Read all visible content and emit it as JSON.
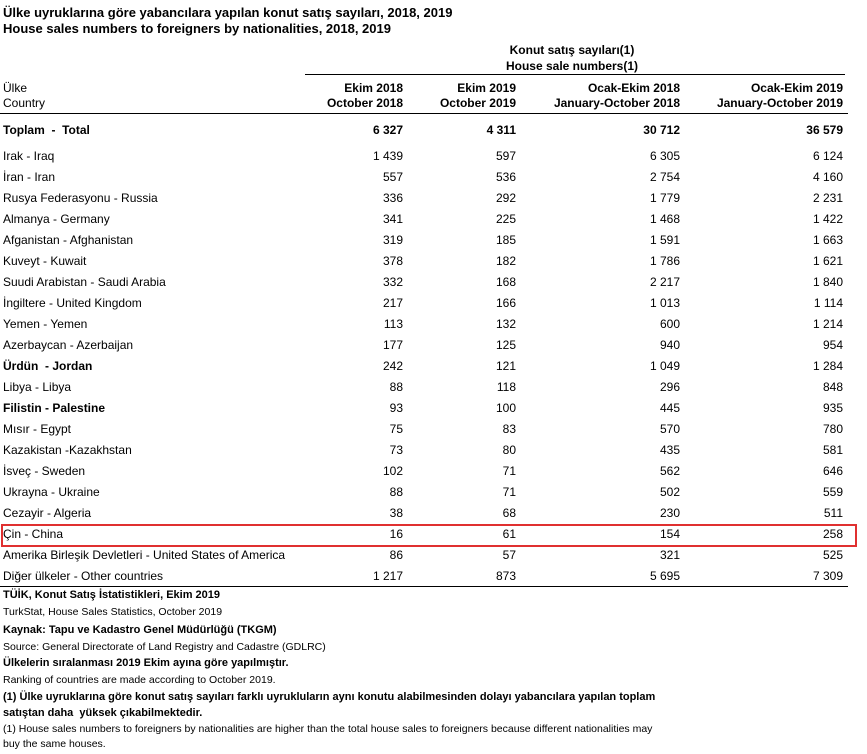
{
  "title": [
    "Ülke uyruklarına göre yabancılara yapılan konut satış sayıları, 2018, 2019",
    "House sales numbers to foreigners by nationalities, 2018, 2019"
  ],
  "header": {
    "group": [
      "Konut satış sayıları(1)",
      "House sale numbers(1)"
    ],
    "country": [
      "Ülke",
      "Country"
    ],
    "columns": [
      [
        "Ekim 2018",
        "October 2018"
      ],
      [
        "Ekim 2019",
        "October 2019"
      ],
      [
        "Ocak-Ekim 2018",
        "January-October 2018"
      ],
      [
        "Ocak-Ekim 2019",
        "January-October 2019"
      ]
    ]
  },
  "total": [
    "Toplam  -  Total",
    "6 327",
    "4 311",
    "30 712",
    "36 579"
  ],
  "rows": [
    [
      "Irak - Iraq",
      "1 439",
      "597",
      "6 305",
      "6 124"
    ],
    [
      "İran - Iran",
      "557",
      "536",
      "2 754",
      "4 160"
    ],
    [
      "Rusya Federasyonu - Russia",
      "336",
      "292",
      "1 779",
      "2 231"
    ],
    [
      "Almanya - Germany",
      "341",
      "225",
      "1 468",
      "1 422"
    ],
    [
      "Afganistan - Afghanistan",
      "319",
      "185",
      "1 591",
      "1 663"
    ],
    [
      "Kuveyt - Kuwait",
      "378",
      "182",
      "1 786",
      "1 621"
    ],
    [
      "Suudi Arabistan - Saudi Arabia",
      "332",
      "168",
      "2 217",
      "1 840"
    ],
    [
      "İngiltere - United Kingdom",
      "217",
      "166",
      "1 013",
      "1 114"
    ],
    [
      "Yemen - Yemen",
      "113",
      "132",
      "600",
      "1 214"
    ],
    [
      "Azerbaycan - Azerbaijan",
      "177",
      "125",
      "940",
      "954"
    ],
    [
      "Ürdün  - Jordan",
      "242",
      "121",
      "1 049",
      "1 284"
    ],
    [
      "Libya - Libya",
      "88",
      "118",
      "296",
      "848"
    ],
    [
      "Filistin - Palestine",
      "93",
      "100",
      "445",
      "935"
    ],
    [
      "Mısır - Egypt",
      "75",
      "83",
      "570",
      "780"
    ],
    [
      "Kazakistan -Kazakhstan",
      "73",
      "80",
      "435",
      "581"
    ],
    [
      "İsveç - Sweden",
      "102",
      "71",
      "562",
      "646"
    ],
    [
      "Ukrayna - Ukraine",
      "88",
      "71",
      "502",
      "559"
    ],
    [
      "Cezayir - Algeria",
      "38",
      "68",
      "230",
      "511"
    ],
    [
      "Çin - China",
      "16",
      "61",
      "154",
      "258"
    ],
    [
      "Amerika Birleşik Devletleri - United States of America",
      "86",
      "57",
      "321",
      "525"
    ],
    [
      "Diğer ülkeler - Other countries",
      "1 217",
      "873",
      "5 695",
      "7 309"
    ]
  ],
  "footnotes": [
    "TÜİK, Konut Satış İstatistikleri, Ekim 2019",
    "TurkStat, House Sales Statistics, October 2019",
    "Kaynak: Tapu ve Kadastro Genel Müdürlüğü (TKGM)",
    "Source: General Directorate of Land Registry and Cadastre (GDLRC)",
    "Ülkelerin sıralanması 2019 Ekim ayına göre yapılmıştır.",
    "Ranking of countries are made according to October 2019.",
    "(1) Ülke uyruklarına göre konut satış sayıları farklı uyrukluların aynı konutu alabilmesinden dolayı yabancılara yapılan toplam",
    "satıştan daha  yüksek çıkabilmektedir.",
    "(1) House sales numbers to foreigners by nationalities are higher than the total house sales to foreigners because different nationalities may",
    "buy the same houses."
  ]
}
